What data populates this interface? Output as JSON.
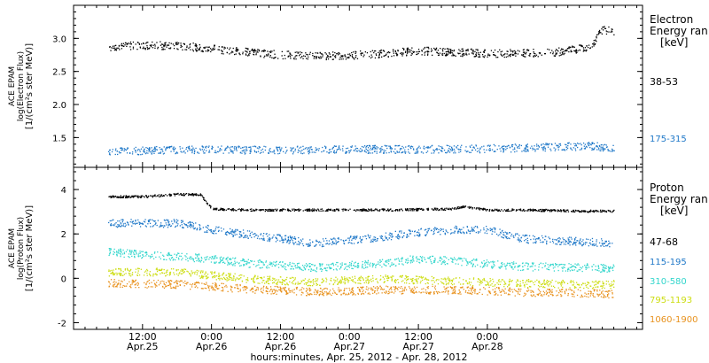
{
  "chart_data": [
    {
      "type": "scatter",
      "panel": "electron",
      "ylabel_lines": [
        "ACE EPAM",
        "log(Electron Flux)",
        "[1/(cm²s ster MeV)]"
      ],
      "ylim": [
        1.05,
        3.5
      ],
      "yticks": [
        1.5,
        2.0,
        2.5,
        3.0
      ],
      "ytick_labels": [
        "1.5",
        "2.0",
        "2.5",
        "3.0"
      ],
      "legend_title": [
        "Electron",
        "Energy ran",
        "[keV]"
      ],
      "series": [
        {
          "name": "38-53",
          "color": "#000000",
          "x": [
            0,
            6,
            12,
            18,
            24,
            30,
            36,
            42,
            48,
            54,
            60,
            66,
            72,
            78,
            84,
            86,
            88
          ],
          "y": [
            2.88,
            2.9,
            2.9,
            2.85,
            2.8,
            2.76,
            2.74,
            2.75,
            2.78,
            2.82,
            2.8,
            2.78,
            2.78,
            2.8,
            2.88,
            3.15,
            3.1
          ]
        },
        {
          "name": "175-315",
          "color": "#1f78c8",
          "x": [
            0,
            12,
            24,
            36,
            48,
            60,
            72,
            84,
            88
          ],
          "y": [
            1.3,
            1.32,
            1.32,
            1.32,
            1.33,
            1.33,
            1.35,
            1.38,
            1.35
          ]
        }
      ]
    },
    {
      "type": "scatter",
      "panel": "proton",
      "ylabel_lines": [
        "ACE EPAM",
        "log(Proton Flux)",
        "[1/(cm²s ster MeV)]"
      ],
      "ylim": [
        -2.3,
        5.0
      ],
      "yticks": [
        -2,
        0,
        2,
        4
      ],
      "ytick_labels": [
        "-2",
        "0",
        "2",
        "4"
      ],
      "legend_title": [
        "Proton",
        "Energy ran",
        "[keV]"
      ],
      "series": [
        {
          "name": "47-68",
          "color": "#000000",
          "x": [
            0,
            6,
            12,
            16,
            18,
            24,
            36,
            48,
            60,
            62,
            66,
            72,
            84,
            88
          ],
          "y": [
            3.7,
            3.7,
            3.8,
            3.8,
            3.15,
            3.1,
            3.1,
            3.1,
            3.15,
            3.25,
            3.1,
            3.1,
            3.05,
            3.05
          ]
        },
        {
          "name": "115-195",
          "color": "#1f78c8",
          "x": [
            0,
            6,
            12,
            18,
            24,
            36,
            48,
            54,
            60,
            66,
            72,
            84,
            88
          ],
          "y": [
            2.5,
            2.5,
            2.5,
            2.2,
            2.0,
            1.6,
            1.9,
            2.1,
            2.2,
            2.2,
            1.8,
            1.65,
            1.6
          ]
        },
        {
          "name": "310-580",
          "color": "#33d6cc",
          "x": [
            0,
            6,
            12,
            18,
            24,
            36,
            48,
            54,
            60,
            72,
            84,
            88
          ],
          "y": [
            1.2,
            1.1,
            1.0,
            0.9,
            0.7,
            0.5,
            0.7,
            0.9,
            0.8,
            0.55,
            0.5,
            0.45
          ]
        },
        {
          "name": "795-1193",
          "color": "#ccdd11",
          "x": [
            0,
            12,
            24,
            36,
            48,
            60,
            72,
            84,
            88
          ],
          "y": [
            0.3,
            0.3,
            0.0,
            -0.15,
            0.0,
            -0.1,
            -0.2,
            -0.25,
            -0.25
          ]
        },
        {
          "name": "1060-1900",
          "color": "#e8921e",
          "x": [
            0,
            12,
            24,
            36,
            48,
            60,
            72,
            84,
            88
          ],
          "y": [
            -0.2,
            -0.25,
            -0.45,
            -0.6,
            -0.5,
            -0.5,
            -0.6,
            -0.65,
            -0.7
          ]
        }
      ]
    }
  ],
  "x_axis": {
    "xlim": [
      -6,
      93
    ],
    "ticks": [
      {
        "x": 6,
        "label": "12:00",
        "date": "Apr.25"
      },
      {
        "x": 18,
        "label": "0:00",
        "date": "Apr.26"
      },
      {
        "x": 30,
        "label": "12:00",
        "date": "Apr.26"
      },
      {
        "x": 42,
        "label": "0:00",
        "date": "Apr.27"
      },
      {
        "x": 54,
        "label": "12:00",
        "date": "Apr.27"
      },
      {
        "x": 66,
        "label": "0:00",
        "date": "Apr.28"
      }
    ],
    "xlabel": "hours:minutes, Apr. 25, 2012 - Apr. 28, 2012"
  }
}
